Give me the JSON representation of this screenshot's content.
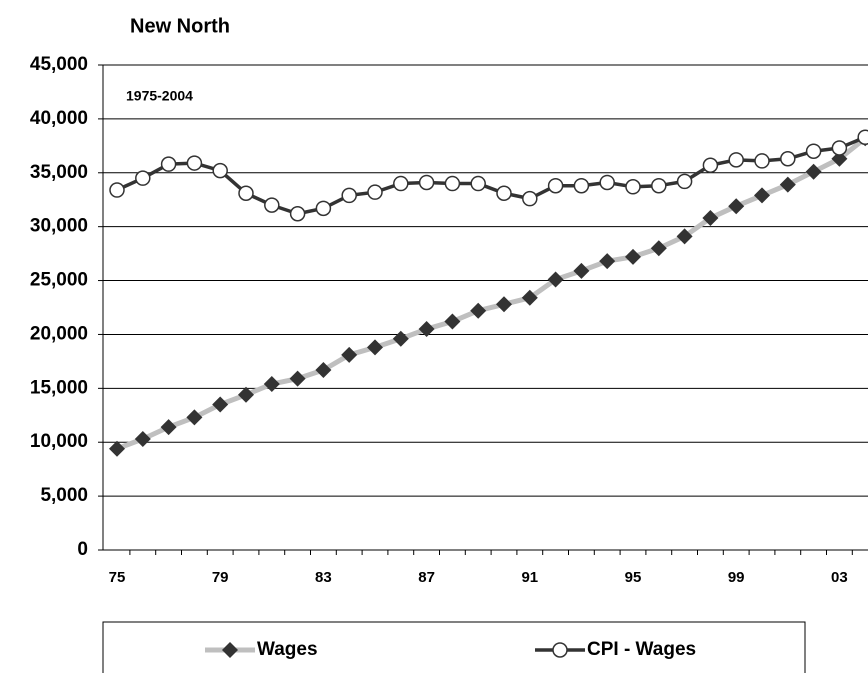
{
  "chart_data": {
    "type": "line",
    "title": "New North",
    "annotation": "1975-2004",
    "categories": [
      "75",
      null,
      null,
      null,
      "79",
      null,
      null,
      null,
      "83",
      null,
      null,
      null,
      "87",
      null,
      null,
      null,
      "91",
      null,
      null,
      null,
      "95",
      null,
      null,
      null,
      "99",
      null,
      null,
      null,
      "03",
      null
    ],
    "series": [
      {
        "name": "Wages",
        "color": "#bfbfbf",
        "marker": "diamond",
        "marker_color": "#333333",
        "values": [
          9400,
          10300,
          11400,
          12300,
          13500,
          14400,
          15400,
          15900,
          16700,
          18100,
          18800,
          19600,
          20500,
          21200,
          22200,
          22800,
          23400,
          25100,
          25900,
          26800,
          27200,
          28000,
          29100,
          30800,
          31900,
          32900,
          33900,
          35100,
          36300,
          38200
        ]
      },
      {
        "name": "CPI - Wages",
        "color": "#333333",
        "marker": "circle",
        "marker_color": "#ffffff",
        "values": [
          33400,
          34500,
          35800,
          35900,
          35200,
          33100,
          32000,
          31200,
          31700,
          32900,
          33200,
          34000,
          34100,
          34000,
          34000,
          33100,
          32600,
          33800,
          33800,
          34100,
          33700,
          33800,
          34200,
          35700,
          36200,
          36100,
          36300,
          37000,
          37300,
          38300
        ]
      }
    ],
    "ylim": [
      0,
      45000
    ],
    "yticks": [
      0,
      {
        "value": 5000,
        "label": "5,000"
      },
      {
        "value": 10000,
        "label": "10,000"
      },
      {
        "value": 15000,
        "label": "15,000"
      },
      {
        "value": 20000,
        "label": "20,000"
      },
      {
        "value": 25000,
        "label": "25,000"
      },
      {
        "value": 30000,
        "label": "30,000"
      },
      {
        "value": 35000,
        "label": "35,000"
      },
      {
        "value": 40000,
        "label": "40,000"
      },
      {
        "value": 45000,
        "label": "45,000"
      }
    ],
    "grid": true,
    "legend": "bottom"
  }
}
